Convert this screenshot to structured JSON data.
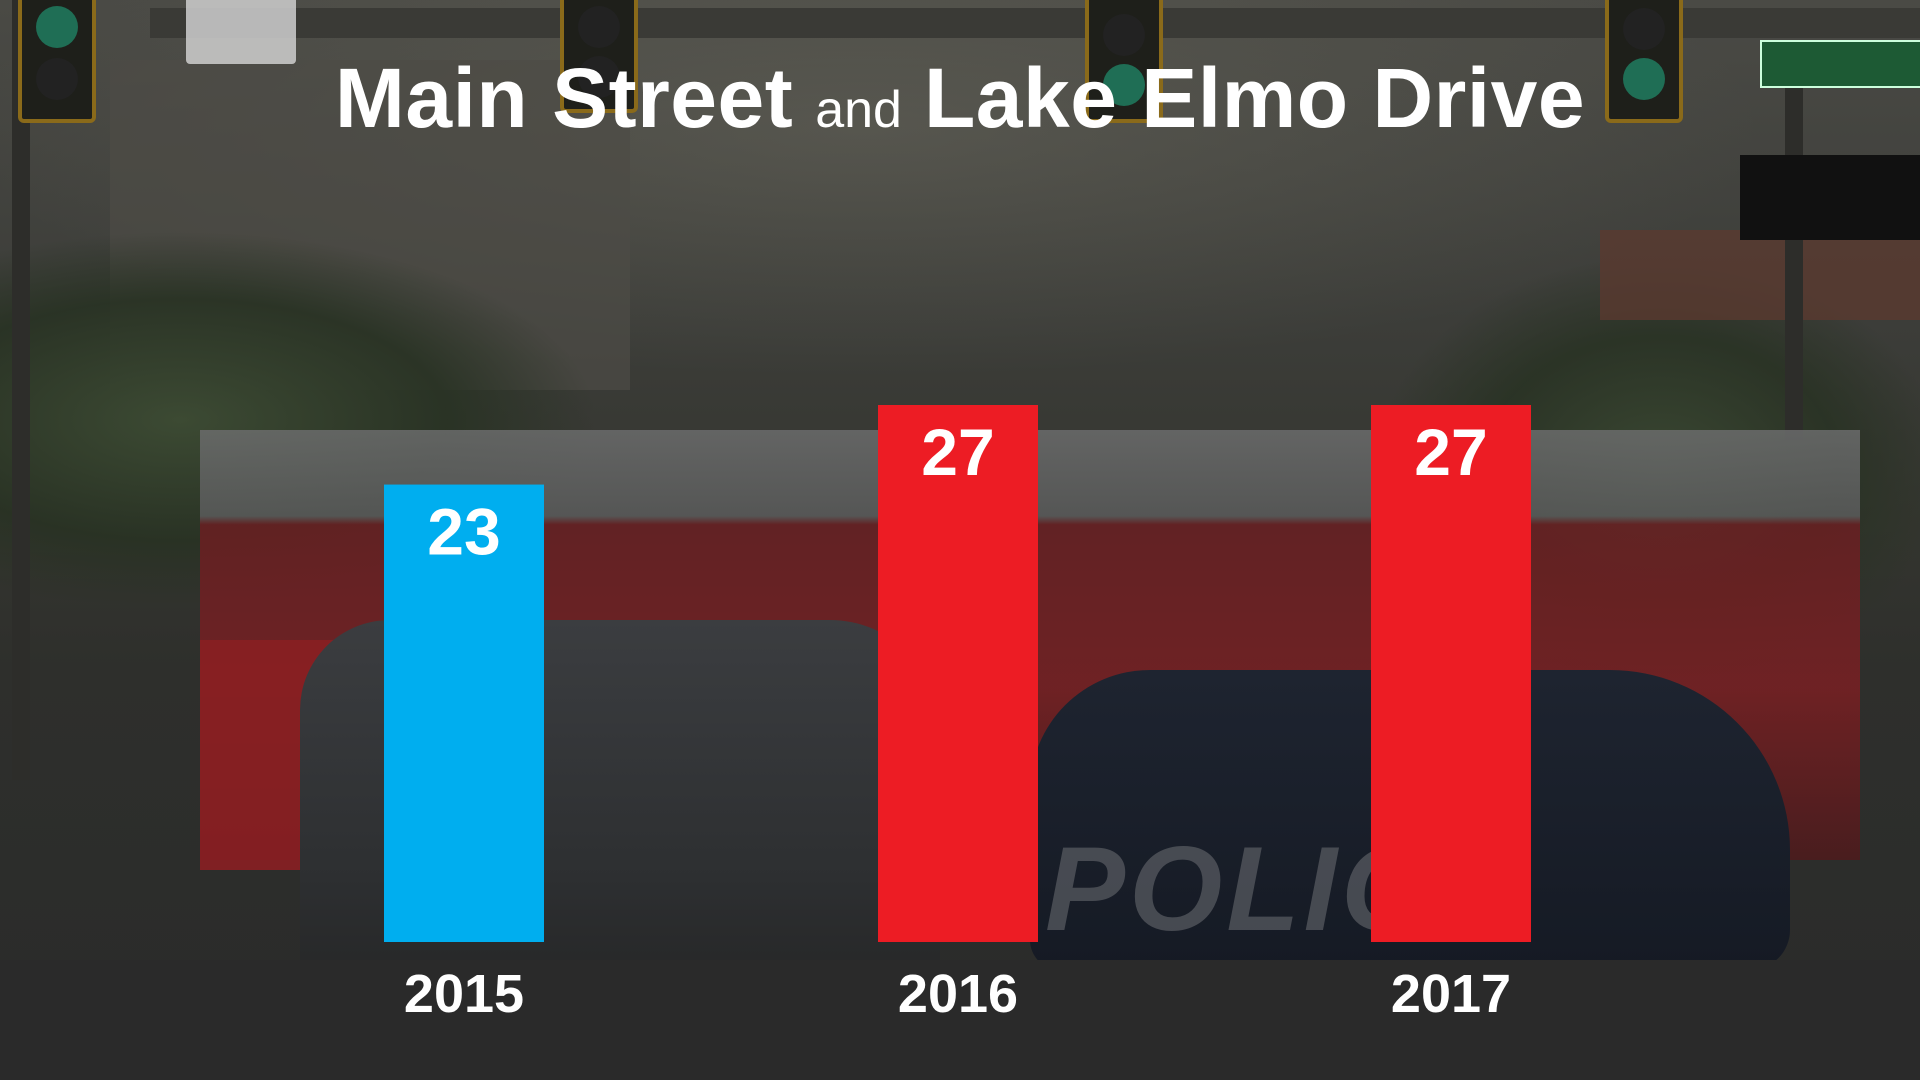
{
  "title": {
    "part1": "Main Street",
    "connector": "and",
    "part2": "Lake Elmo Drive"
  },
  "chart_data": {
    "type": "bar",
    "title": "Main Street and Lake Elmo Drive",
    "xlabel": "",
    "ylabel": "",
    "categories": [
      "2015",
      "2016",
      "2017"
    ],
    "values": [
      23,
      27,
      27
    ],
    "ylim": [
      0,
      27
    ],
    "grid": false,
    "bar_colors": [
      "#00aeef",
      "#ed1c24",
      "#ed1c24"
    ],
    "data_labels": [
      "23",
      "27",
      "27"
    ]
  }
}
